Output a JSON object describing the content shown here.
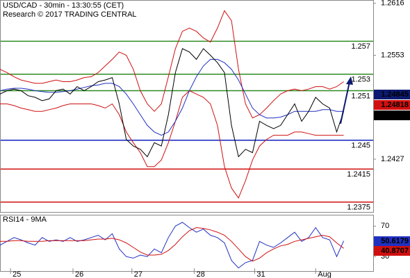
{
  "chart_data": [
    {
      "type": "line",
      "title": "USD/CAD - 30min - 13:30:55 (CET)",
      "subtitle": "Research © 2017 TRADING CENTRAL",
      "x": [
        0,
        1,
        2,
        3,
        4,
        5,
        6,
        7,
        8,
        9,
        10,
        11,
        12,
        13,
        14,
        15,
        16,
        17,
        18,
        19,
        20,
        21,
        22,
        23,
        24,
        25,
        26,
        27,
        28,
        29,
        30,
        31,
        32,
        33,
        34,
        35,
        36,
        37,
        38,
        39,
        40,
        41,
        42,
        43,
        44,
        45,
        46,
        47,
        48,
        49
      ],
      "xlim": [
        0,
        53
      ],
      "xticks": [
        {
          "value": 1.5,
          "label": "25"
        },
        {
          "value": 10.4,
          "label": "26"
        },
        {
          "value": 18.8,
          "label": "27"
        },
        {
          "value": 27.7,
          "label": "28"
        },
        {
          "value": 36.3,
          "label": "31"
        },
        {
          "value": 45,
          "label": "Aug"
        }
      ],
      "ylim": [
        1.2363,
        1.262
      ],
      "yticks": [
        1.2616,
        1.2553,
        1.2427
      ],
      "series": [
        {
          "color": "#d01010",
          "values": [
            1.2536,
            1.2532,
            1.2527,
            1.2523,
            1.2521,
            1.2519,
            1.2519,
            1.2521,
            1.2523,
            1.2521,
            1.2521,
            1.2523,
            1.2526,
            1.2527,
            1.2532,
            1.254,
            1.2548,
            1.2557,
            1.2553,
            1.2536,
            1.251,
            1.2494,
            1.2485,
            1.2494,
            1.2527,
            1.2561,
            1.2582,
            1.2586,
            1.2582,
            1.2574,
            1.2569,
            1.2586,
            1.2607,
            1.2595,
            1.2536,
            1.2494,
            1.2477,
            1.2481,
            1.2489,
            1.2498,
            1.2506,
            1.251,
            1.2512,
            1.251,
            1.2512,
            1.2515,
            1.2515,
            1.2512,
            1.2515,
            1.2521
          ]
        },
        {
          "color": "#d01010",
          "values": [
            1.2494,
            1.2494,
            1.2492,
            1.2489,
            1.2487,
            1.2485,
            1.2485,
            1.2487,
            1.2489,
            1.2492,
            1.2494,
            1.2494,
            1.2494,
            1.2494,
            1.2492,
            1.2489,
            1.2494,
            1.2481,
            1.246,
            1.2447,
            1.2435,
            1.2418,
            1.2418,
            1.2426,
            1.2447,
            1.2473,
            1.2502,
            1.251,
            1.2506,
            1.2502,
            1.2494,
            1.2468,
            1.2418,
            1.2392,
            1.238,
            1.2401,
            1.2426,
            1.2443,
            1.2451,
            1.2456,
            1.2456,
            1.2456,
            1.246,
            1.246,
            1.2458,
            1.2456,
            1.2456,
            1.2456,
            1.2456,
            1.2456
          ]
        },
        {
          "color": "#2030c0",
          "values": [
            1.251,
            1.2512,
            1.2513,
            1.2513,
            1.2512,
            1.251,
            1.2509,
            1.2508,
            1.2508,
            1.2509,
            1.251,
            1.2512,
            1.2514,
            1.2516,
            1.2517,
            1.2519,
            1.2519,
            1.2515,
            1.2506,
            1.2494,
            1.2481,
            1.2468,
            1.246,
            1.2456,
            1.246,
            1.2473,
            1.2489,
            1.251,
            1.2527,
            1.254,
            1.2548,
            1.2548,
            1.2544,
            1.2536,
            1.2523,
            1.2506,
            1.2489,
            1.2481,
            1.2477,
            1.2477,
            1.2478,
            1.2481,
            1.2485,
            1.2485,
            1.2485,
            1.2485,
            1.2487,
            1.2487,
            1.2485,
            1.2485
          ]
        },
        {
          "color": "#000000",
          "values": [
            1.2506,
            1.251,
            1.2512,
            1.251,
            1.2504,
            1.2502,
            1.2498,
            1.25,
            1.251,
            1.2512,
            1.2506,
            1.2515,
            1.251,
            1.2515,
            1.2521,
            1.2523,
            1.2526,
            1.2494,
            1.2451,
            1.2443,
            1.2439,
            1.243,
            1.2447,
            1.2443,
            1.2481,
            1.2532,
            1.2561,
            1.2557,
            1.2548,
            1.2561,
            1.2553,
            1.2544,
            1.2532,
            1.2468,
            1.243,
            1.2439,
            1.2435,
            1.2473,
            1.2468,
            1.2464,
            1.2468,
            1.2481,
            1.2494,
            1.2473,
            1.2485,
            1.2502,
            1.2494,
            1.2489,
            1.246,
            1.2485
          ]
        }
      ],
      "levels": [
        {
          "value": 1.257,
          "color": "#2e8b22"
        },
        {
          "value": 1.253,
          "color": "#2e8b22"
        },
        {
          "value": 1.251,
          "color": "#2e8b22"
        },
        {
          "value": 1.245,
          "color": "#1020c0"
        },
        {
          "value": 1.2415,
          "color": "#d01010"
        },
        {
          "value": 1.2375,
          "color": "#d01010"
        }
      ],
      "last_values": [
        {
          "value": 1.24845,
          "color": "#0c1a70"
        },
        {
          "value": 1.24818,
          "color": "#d01010"
        },
        {
          "value": 1.24813,
          "color": "#000000"
        }
      ]
    },
    {
      "type": "line",
      "title": "RSI14 - 9MA",
      "x": [
        0,
        1,
        2,
        3,
        4,
        5,
        6,
        7,
        8,
        9,
        10,
        11,
        12,
        13,
        14,
        15,
        16,
        17,
        18,
        19,
        20,
        21,
        22,
        23,
        24,
        25,
        26,
        27,
        28,
        29,
        30,
        31,
        32,
        33,
        34,
        35,
        36,
        37,
        38,
        39,
        40,
        41,
        42,
        43,
        44,
        45,
        46,
        47,
        48,
        49
      ],
      "xlim": [
        0,
        53
      ],
      "ylim": [
        11,
        84
      ],
      "yticks": [
        70,
        30
      ],
      "series": [
        {
          "color": "#2030c0",
          "values": [
            45,
            50,
            55,
            52,
            48,
            45,
            55,
            50,
            52,
            50,
            55,
            50,
            52,
            55,
            58,
            52,
            60,
            40,
            30,
            28,
            32,
            30,
            40,
            35,
            55,
            70,
            75,
            68,
            62,
            66,
            58,
            55,
            48,
            25,
            15,
            22,
            25,
            50,
            45,
            42,
            48,
            55,
            62,
            50,
            55,
            68,
            55,
            52,
            30,
            50.6179
          ]
        },
        {
          "color": "#d01010",
          "values": [
            50,
            50,
            51,
            51,
            50,
            50,
            50,
            51,
            51,
            51,
            51,
            51,
            51,
            52,
            53,
            53,
            54,
            52,
            48,
            42,
            36,
            32,
            32,
            33,
            38,
            46,
            56,
            64,
            68,
            67,
            65,
            62,
            58,
            50,
            40,
            30,
            24,
            28,
            35,
            40,
            44,
            46,
            50,
            52,
            54,
            56,
            58,
            56,
            48,
            40.8707
          ]
        }
      ],
      "last_values": [
        {
          "value": 50.6179,
          "color": "#2030c0"
        },
        {
          "value": 40.8707,
          "color": "#d01010"
        }
      ]
    }
  ]
}
